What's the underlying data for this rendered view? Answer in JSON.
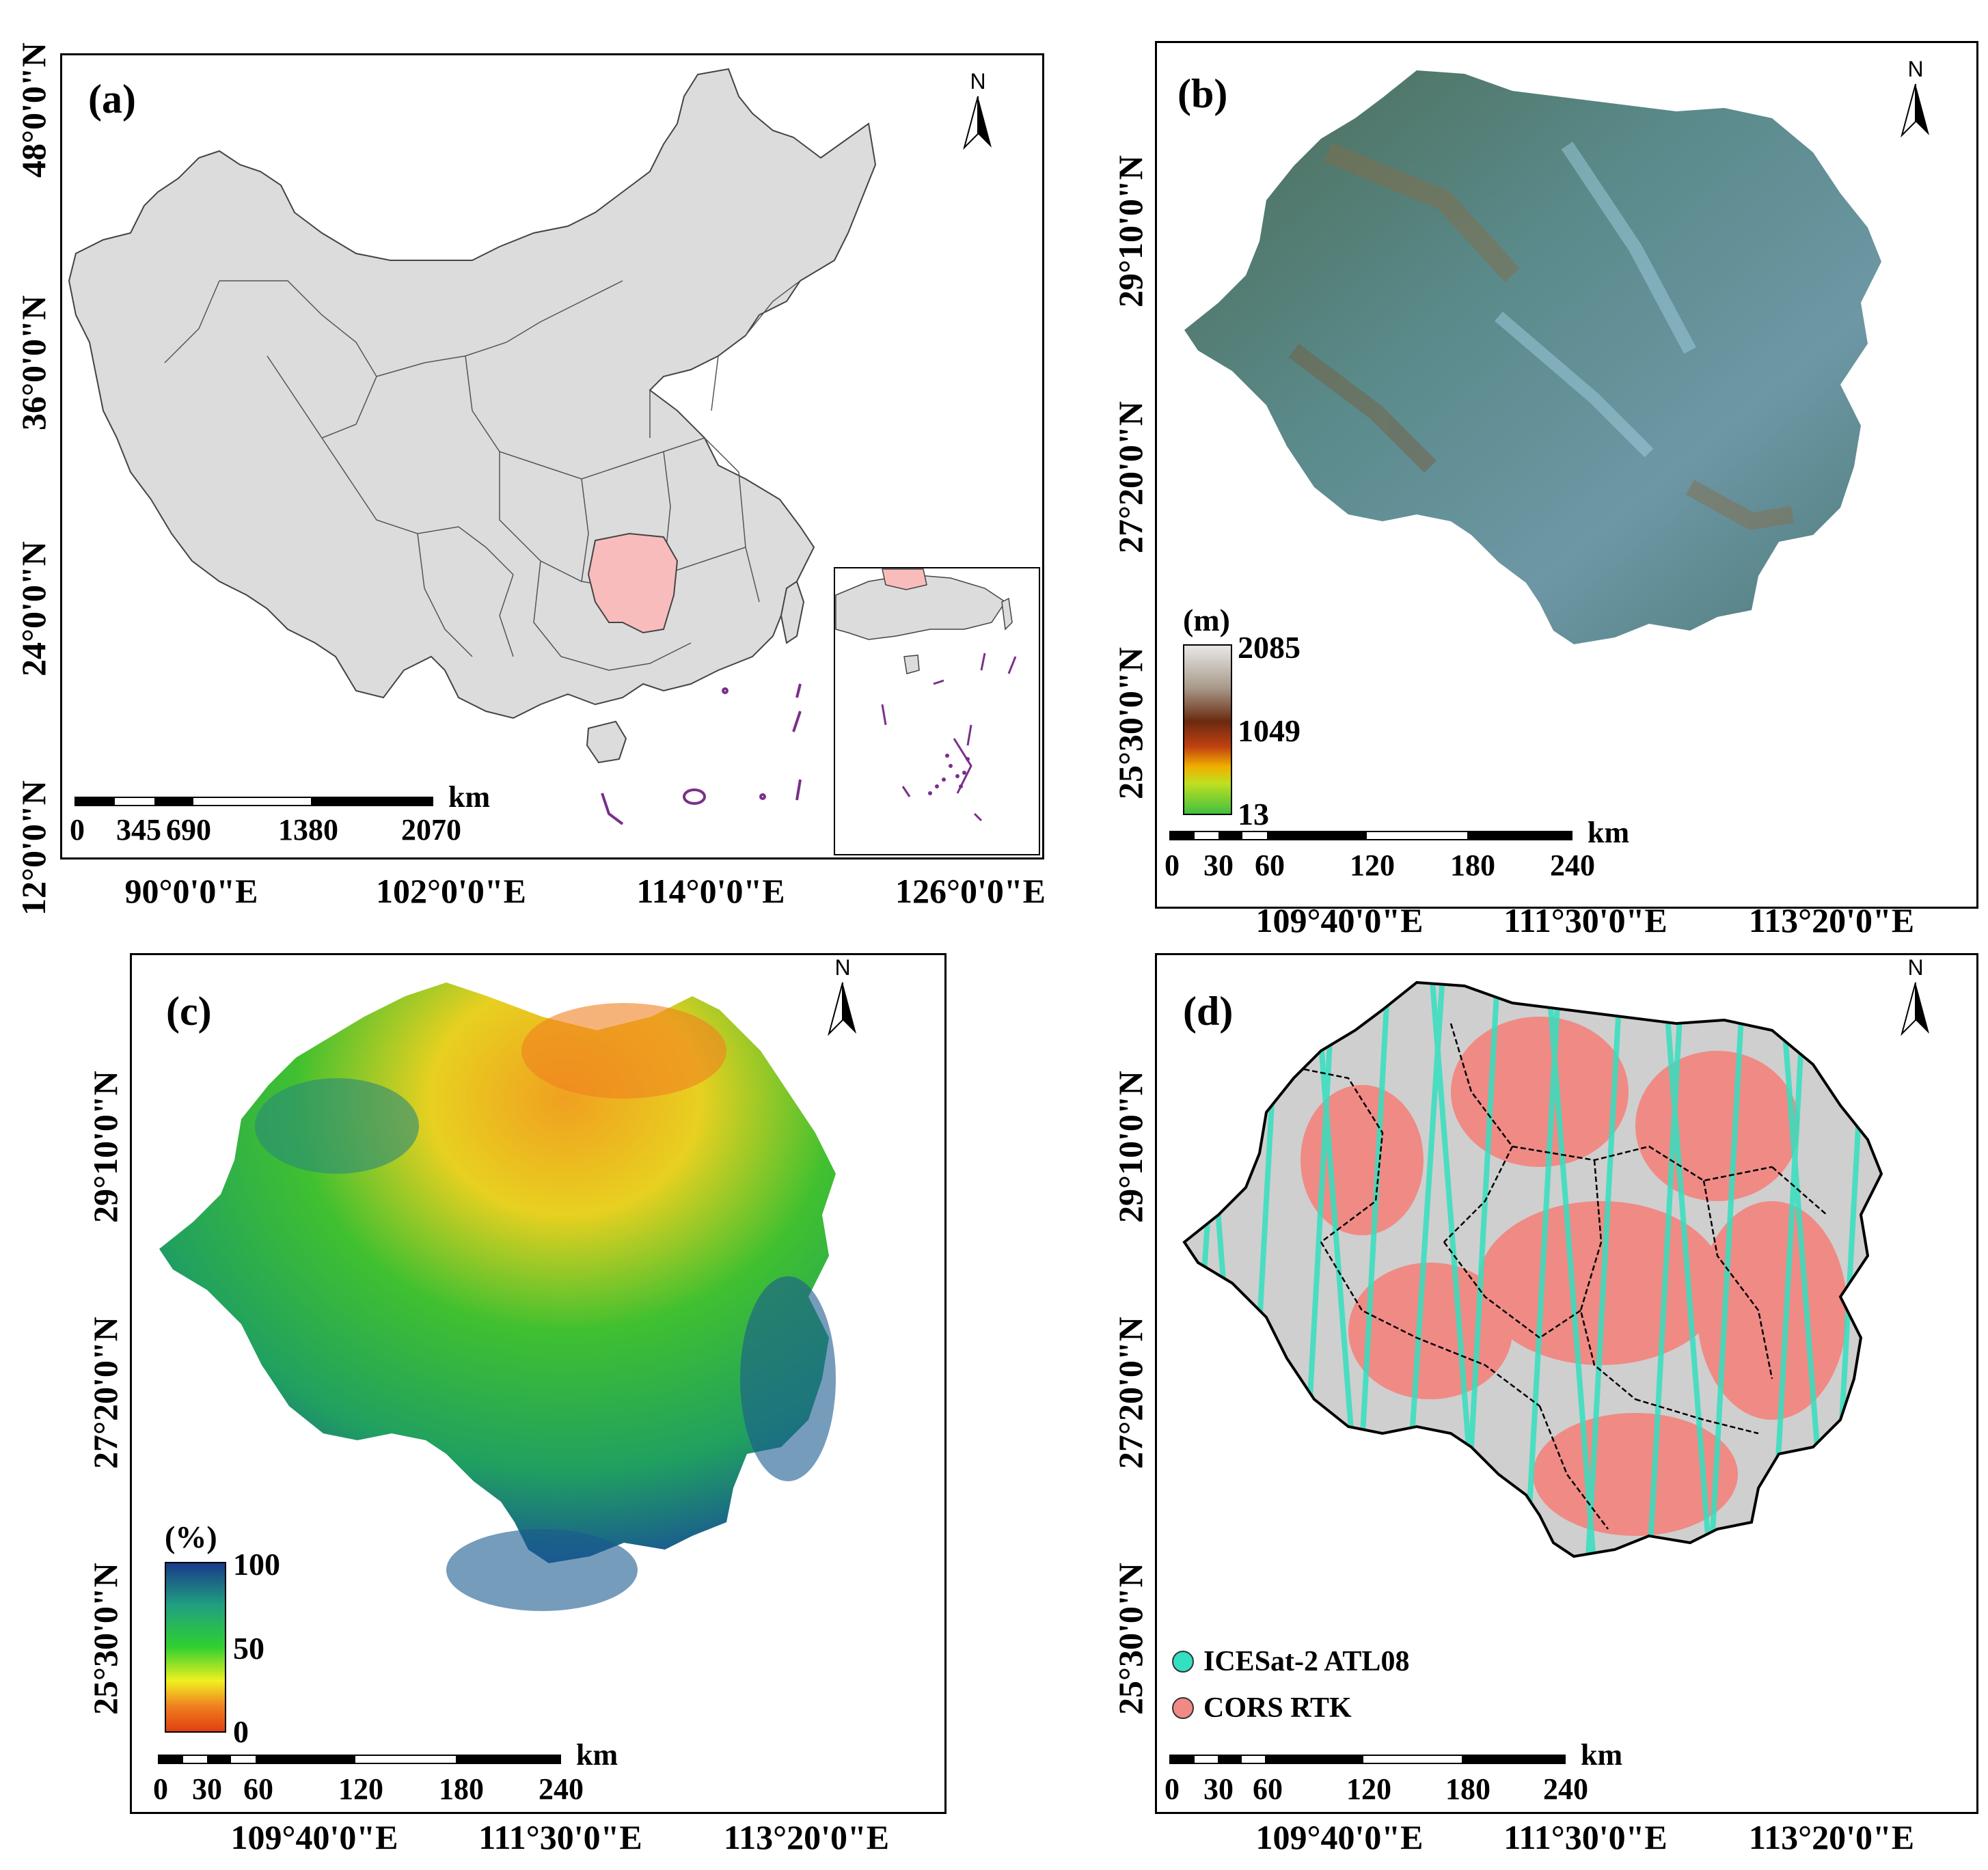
{
  "panels": {
    "a": {
      "label": "(a)",
      "lat_labels": [
        "48°0'0\"N",
        "36°0'0\"N",
        "24°0'0\"N",
        "12°0'0\"N"
      ],
      "lon_labels": [
        "90°0'0\"E",
        "102°0'0\"E",
        "114°0'0\"E",
        "126°0'0\"E"
      ],
      "scale_ticks": [
        "0",
        "345",
        "690",
        "1380",
        "2070"
      ],
      "scale_unit": "km",
      "north": "N"
    },
    "b": {
      "label": "(b)",
      "lat_labels": [
        "29°10'0\"N",
        "27°20'0\"N",
        "25°30'0\"N"
      ],
      "lon_labels": [
        "109°40'0\"E",
        "111°30'0\"E",
        "113°20'0\"E"
      ],
      "colorbar_title": "(m)",
      "colorbar_max": "2085",
      "colorbar_mid": "1049",
      "colorbar_min": "13",
      "scale_ticks": [
        "0",
        "30",
        "60",
        "120",
        "180",
        "240"
      ],
      "scale_unit": "km",
      "north": "N"
    },
    "c": {
      "label": "(c)",
      "lat_labels": [
        "29°10'0\"N",
        "27°20'0\"N",
        "25°30'0\"N"
      ],
      "lon_labels": [
        "109°40'0\"E",
        "111°30'0\"E",
        "113°20'0\"E"
      ],
      "colorbar_title": "(%)",
      "colorbar_max": "100",
      "colorbar_mid": "50",
      "colorbar_min": "0",
      "scale_ticks": [
        "0",
        "30",
        "60",
        "120",
        "180",
        "240"
      ],
      "scale_unit": "km",
      "north": "N"
    },
    "d": {
      "label": "(d)",
      "lat_labels": [
        "29°10'0\"N",
        "27°20'0\"N",
        "25°30'0\"N"
      ],
      "lon_labels": [
        "109°40'0\"E",
        "111°30'0\"E",
        "113°20'0\"E"
      ],
      "legend": [
        {
          "label": "ICESat-2 ATL08",
          "color": "#33e0c0"
        },
        {
          "label": "CORS RTK",
          "color": "#f08a85"
        }
      ],
      "scale_ticks": [
        "0",
        "30",
        "60",
        "120",
        "180",
        "240"
      ],
      "scale_unit": "km",
      "north": "N"
    }
  },
  "colors": {
    "china_fill": "#dcdcdc",
    "hunan_fill": "#f9bcbc",
    "islands": "#7a2f8a",
    "icesat": "#33e0c0",
    "cors": "#f08a85"
  }
}
